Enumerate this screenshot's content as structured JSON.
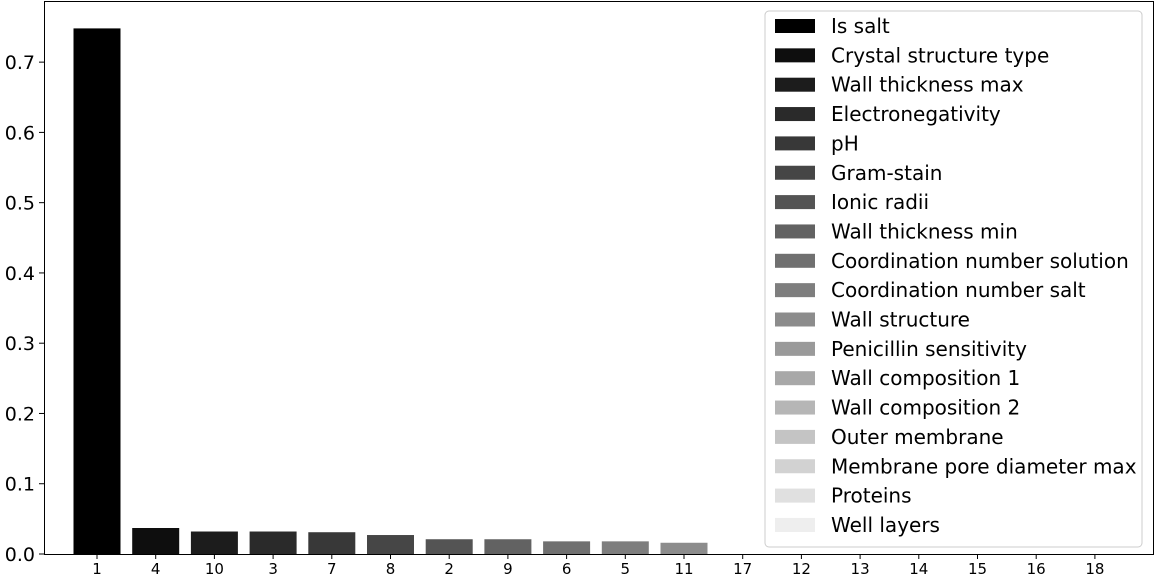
{
  "chart_data": {
    "type": "bar",
    "categories": [
      "1",
      "4",
      "10",
      "3",
      "7",
      "8",
      "2",
      "9",
      "6",
      "5",
      "11",
      "17",
      "12",
      "13",
      "14",
      "15",
      "16",
      "18"
    ],
    "values": [
      0.748,
      0.037,
      0.032,
      0.032,
      0.031,
      0.027,
      0.021,
      0.021,
      0.018,
      0.018,
      0.016,
      0.0,
      0.0,
      0.0,
      0.0,
      0.0,
      0.0,
      0.0
    ],
    "colors": [
      "#000000",
      "#0e0e0e",
      "#1c1c1c",
      "#2a2a2a",
      "#383838",
      "#464646",
      "#545454",
      "#626262",
      "#707070",
      "#7e7e7e",
      "#8c8c8c",
      "#9a9a9a",
      "#a8a8a8",
      "#b6b6b6",
      "#c4c4c4",
      "#d2d2d2",
      "#e0e0e0",
      "#eeeeee"
    ],
    "legend": [
      "Is salt",
      "Crystal structure type",
      "Wall thickness max",
      "Electronegativity",
      "pH",
      "Gram-stain",
      "Ionic radii",
      "Wall thickness min",
      "Coordination number solution",
      "Coordination number salt",
      "Wall structure",
      "Penicillin sensitivity",
      "Wall composition 1",
      "Wall composition 2",
      "Outer membrane",
      "Membrane pore diameter max",
      "Proteins",
      "Well layers"
    ],
    "legend_colors": [
      "#000000",
      "#0e0e0e",
      "#1c1c1c",
      "#2a2a2a",
      "#383838",
      "#464646",
      "#545454",
      "#626262",
      "#707070",
      "#7e7e7e",
      "#8c8c8c",
      "#9a9a9a",
      "#a8a8a8",
      "#b6b6b6",
      "#c4c4c4",
      "#d2d2d2",
      "#e0e0e0",
      "#eeeeee"
    ],
    "legend_position": "top-right",
    "yticks": [
      "0.0",
      "0.1",
      "0.2",
      "0.3",
      "0.4",
      "0.5",
      "0.6",
      "0.7"
    ],
    "ylim": [
      0,
      0.787
    ],
    "grid": false,
    "title": "",
    "xlabel": "",
    "ylabel": ""
  }
}
